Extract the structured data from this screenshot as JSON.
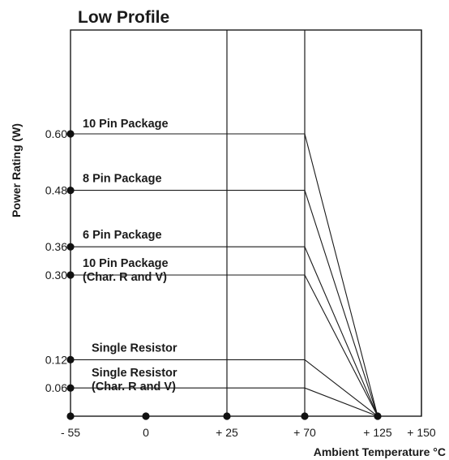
{
  "chart_data": {
    "type": "line",
    "title": "Low Profile",
    "xlabel": "Ambient Temperature °C",
    "ylabel": "Power Rating (W)",
    "x_ticks": [
      {
        "value": -55,
        "label": "- 55"
      },
      {
        "value": 0,
        "label": "0"
      },
      {
        "value": 25,
        "label": "+ 25"
      },
      {
        "value": 70,
        "label": "+ 70"
      },
      {
        "value": 125,
        "label": "+ 125"
      },
      {
        "value": 150,
        "label": "+ 150"
      }
    ],
    "y_ticks": [
      {
        "value": 0.6,
        "label": "0.60"
      },
      {
        "value": 0.48,
        "label": "0.48"
      },
      {
        "value": 0.36,
        "label": "0.36"
      },
      {
        "value": 0.3,
        "label": "0.30"
      },
      {
        "value": 0.12,
        "label": "0.12"
      },
      {
        "value": 0.06,
        "label": "0.06"
      }
    ],
    "grid_x": [
      25,
      70,
      150
    ],
    "series": [
      {
        "label_lines": [
          "10 Pin Package"
        ],
        "points": [
          [
            -55,
            0.6
          ],
          [
            70,
            0.6
          ],
          [
            125,
            0
          ]
        ]
      },
      {
        "label_lines": [
          "8 Pin Package"
        ],
        "points": [
          [
            -55,
            0.48
          ],
          [
            70,
            0.48
          ],
          [
            125,
            0
          ]
        ]
      },
      {
        "label_lines": [
          "6 Pin Package"
        ],
        "points": [
          [
            -55,
            0.36
          ],
          [
            70,
            0.36
          ],
          [
            125,
            0
          ]
        ]
      },
      {
        "label_lines": [
          "10 Pin Package",
          "(Char. R and V)"
        ],
        "points": [
          [
            -55,
            0.3
          ],
          [
            70,
            0.3
          ],
          [
            125,
            0
          ]
        ]
      },
      {
        "label_lines": [
          "Single Resistor"
        ],
        "points": [
          [
            -55,
            0.12
          ],
          [
            70,
            0.12
          ],
          [
            125,
            0
          ]
        ]
      },
      {
        "label_lines": [
          "Single Resistor",
          "(Char. R and V)"
        ],
        "points": [
          [
            -55,
            0.06
          ],
          [
            70,
            0.06
          ],
          [
            125,
            0
          ]
        ]
      }
    ]
  }
}
